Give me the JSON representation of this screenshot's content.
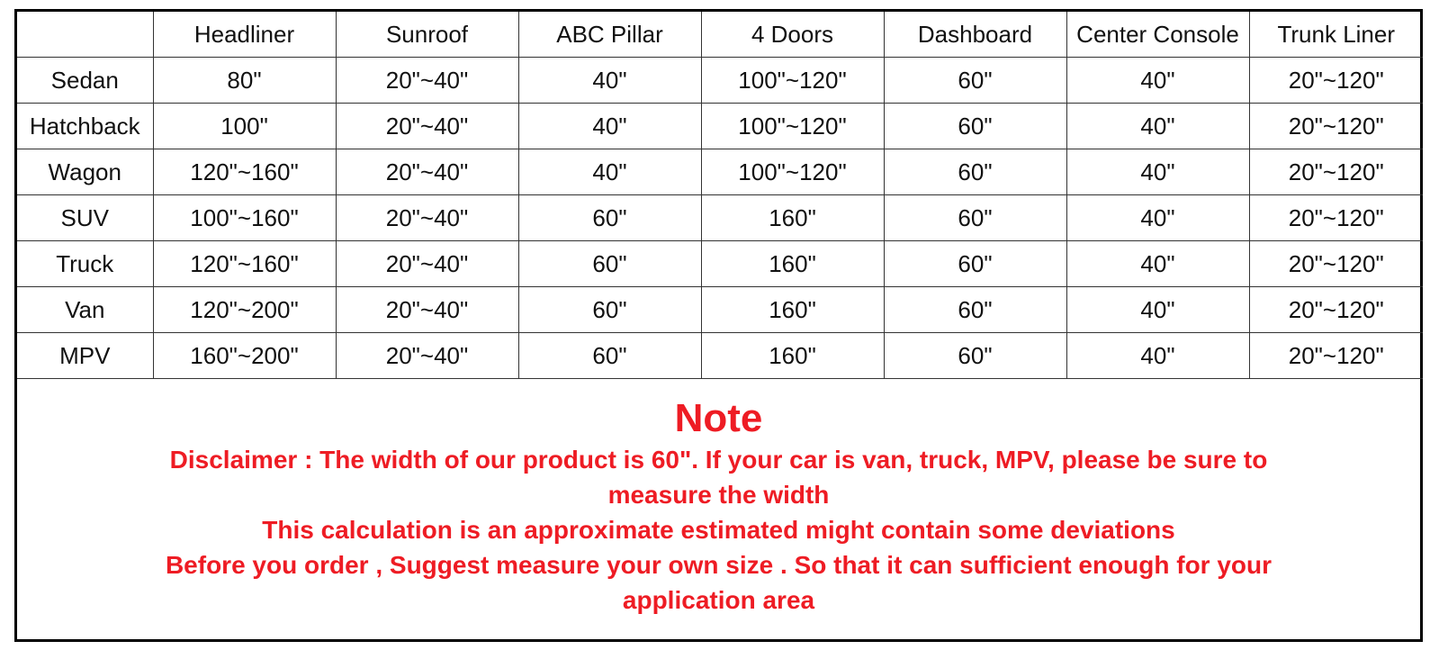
{
  "table": {
    "headers": [
      "",
      "Headliner",
      "Sunroof",
      "ABC Pillar",
      "4 Doors",
      "Dashboard",
      "Center Console",
      "Trunk Liner"
    ],
    "rows": [
      [
        "Sedan",
        "80\"",
        "20\"~40\"",
        "40\"",
        "100\"~120\"",
        "60\"",
        "40\"",
        "20\"~120\""
      ],
      [
        "Hatchback",
        "100\"",
        "20\"~40\"",
        "40\"",
        "100\"~120\"",
        "60\"",
        "40\"",
        "20\"~120\""
      ],
      [
        "Wagon",
        "120\"~160\"",
        "20\"~40\"",
        "40\"",
        "100\"~120\"",
        "60\"",
        "40\"",
        "20\"~120\""
      ],
      [
        "SUV",
        "100\"~160\"",
        "20\"~40\"",
        "60\"",
        "160\"",
        "60\"",
        "40\"",
        "20\"~120\""
      ],
      [
        "Truck",
        "120\"~160\"",
        "20\"~40\"",
        "60\"",
        "160\"",
        "60\"",
        "40\"",
        "20\"~120\""
      ],
      [
        "Van",
        "120\"~200\"",
        "20\"~40\"",
        "60\"",
        "160\"",
        "60\"",
        "40\"",
        "20\"~120\""
      ],
      [
        "MPV",
        "160\"~200\"",
        "20\"~40\"",
        "60\"",
        "160\"",
        "60\"",
        "40\"",
        "20\"~120\""
      ]
    ]
  },
  "note": {
    "title": "Note",
    "color": "#ee1c24",
    "lines": [
      "Disclaimer : The width of our product is 60\". If your car is van, truck, MPV, please be sure to",
      "measure the width",
      "This calculation is an approximate estimated might contain some deviations",
      "Before you order , Suggest measure your own size . So that it can sufficient enough for your",
      "application area"
    ]
  }
}
